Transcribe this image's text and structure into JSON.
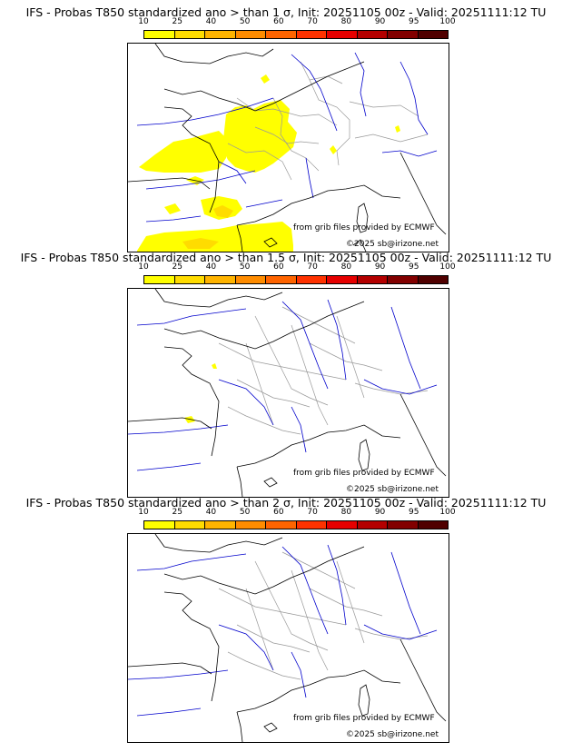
{
  "colorbar": {
    "ticks": [
      "10",
      "25",
      "40",
      "50",
      "60",
      "70",
      "80",
      "90",
      "95",
      "100"
    ],
    "colors": [
      "#ffff00",
      "#ffdc00",
      "#ffb400",
      "#ff8c00",
      "#ff6400",
      "#ff3200",
      "#e60000",
      "#b40000",
      "#820000",
      "#500000"
    ]
  },
  "panels": [
    {
      "title": "IFS - Probas T850  standardized ano > than 1 σ, Init: 20251105 00z - Valid: 20251111:12 TU",
      "credit_source": "from grib files provided by ECMWF",
      "credit_copyright": "©2025 sb@irizone.net"
    },
    {
      "title": "IFS - Probas T850  standardized ano > than 1.5 σ, Init: 20251105 00z - Valid: 20251111:12 TU",
      "credit_source": "from grib files provided by ECMWF",
      "credit_copyright": "©2025 sb@irizone.net"
    },
    {
      "title": "IFS - Probas T850  standardized ano > than 2 σ, Init: 20251105 00z - Valid: 20251111:12 TU",
      "credit_source": "from grib files provided by ECMWF",
      "credit_copyright": "©2025 sb@irizone.net"
    }
  ],
  "colors": {
    "coastline": "#000000",
    "rivers": "#0000cc",
    "borders": "#999999",
    "prob_low": "#ffff00",
    "prob_mid": "#ffdc00"
  }
}
